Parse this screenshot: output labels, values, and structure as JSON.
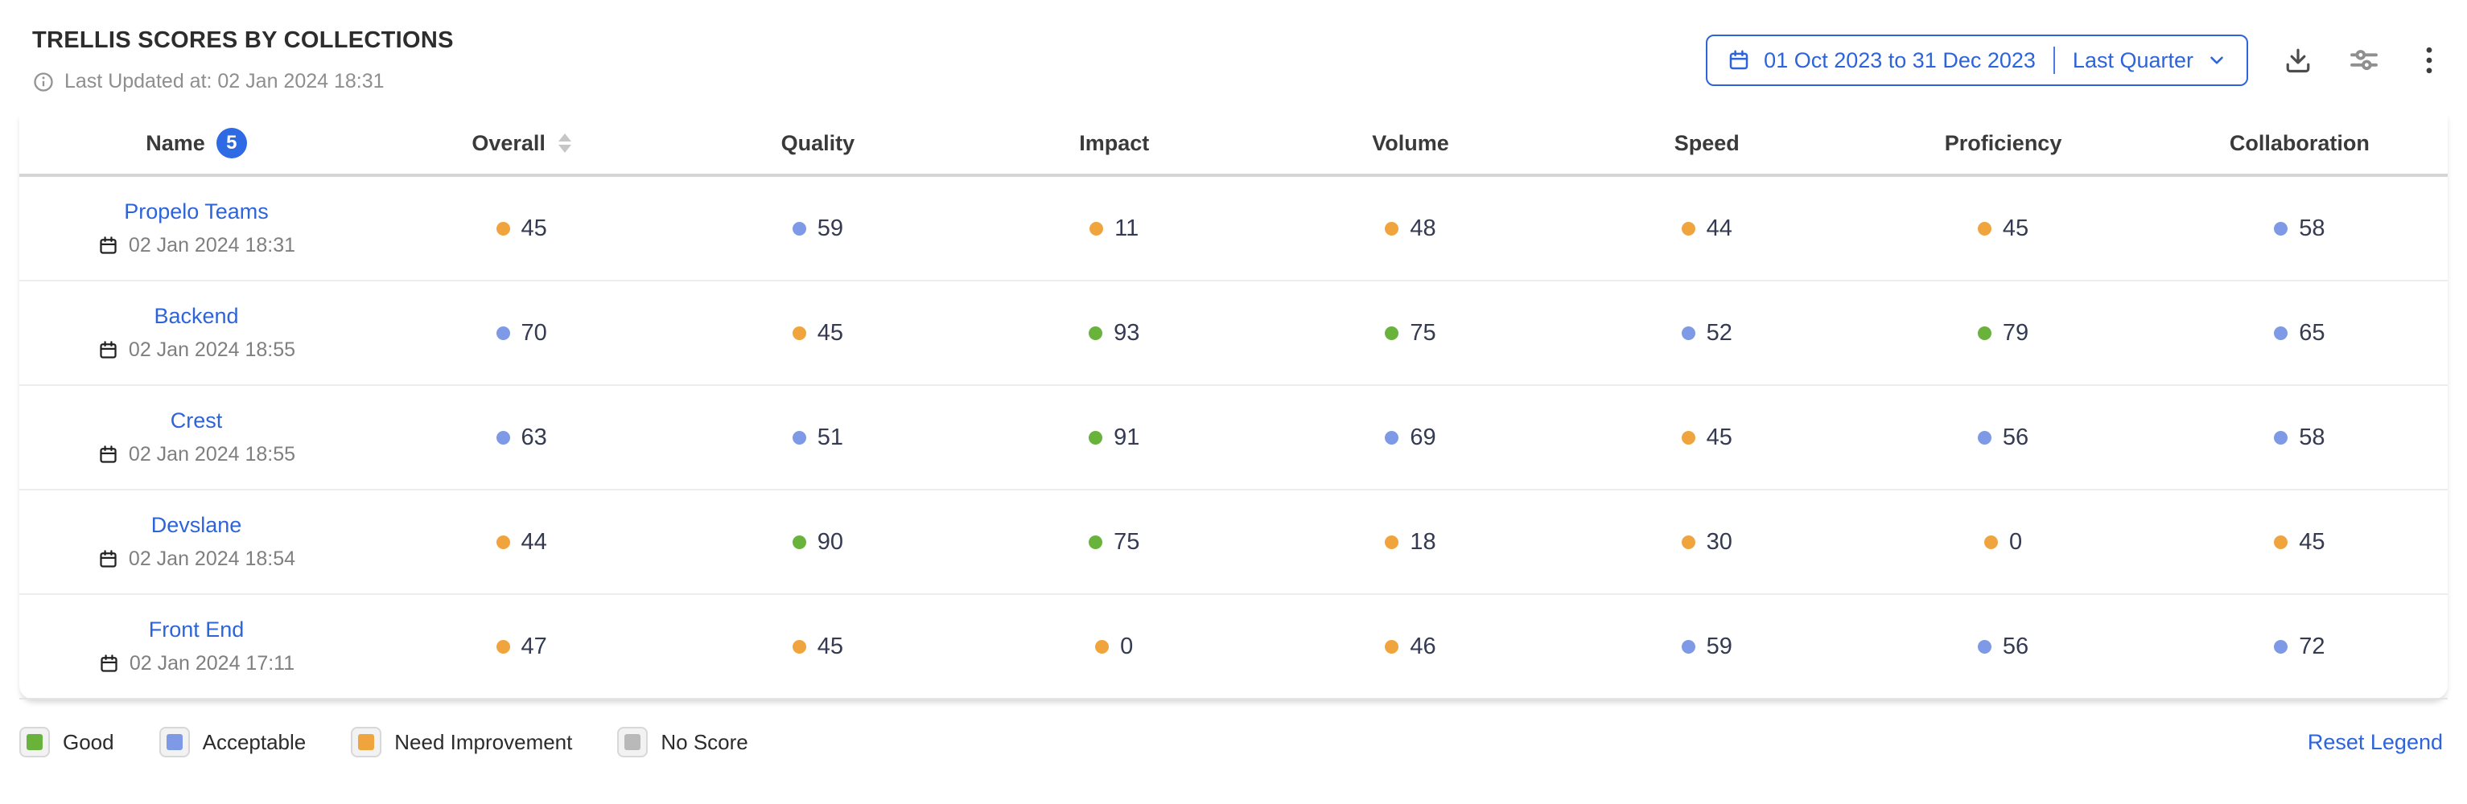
{
  "header": {
    "title": "TRELLIS SCORES BY COLLECTIONS",
    "last_updated": "Last Updated at: 02 Jan 2024 18:31",
    "date_range_label": "01 Oct 2023 to 31 Dec 2023",
    "date_preset_label": "Last Quarter"
  },
  "colors": {
    "accent_blue": "#2d64da",
    "badge_blue": "#2d6ae3",
    "good": "#69b23c",
    "acceptable": "#7e99e6",
    "need_improvement": "#f0a43e",
    "no_score": "#b9b9b9"
  },
  "table": {
    "columns": [
      {
        "label": "Name",
        "badge": "5",
        "sortable": false
      },
      {
        "label": "Overall",
        "sortable": true
      },
      {
        "label": "Quality",
        "sortable": false
      },
      {
        "label": "Impact",
        "sortable": false
      },
      {
        "label": "Volume",
        "sortable": false
      },
      {
        "label": "Speed",
        "sortable": false
      },
      {
        "label": "Proficiency",
        "sortable": false
      },
      {
        "label": "Collaboration",
        "sortable": false
      }
    ],
    "rows": [
      {
        "name": "Propelo Teams",
        "updated": "02 Jan 2024 18:31",
        "scores": [
          {
            "value": 45,
            "rating": "need_improvement"
          },
          {
            "value": 59,
            "rating": "acceptable"
          },
          {
            "value": 11,
            "rating": "need_improvement"
          },
          {
            "value": 48,
            "rating": "need_improvement"
          },
          {
            "value": 44,
            "rating": "need_improvement"
          },
          {
            "value": 45,
            "rating": "need_improvement"
          },
          {
            "value": 58,
            "rating": "acceptable"
          }
        ]
      },
      {
        "name": "Backend",
        "updated": "02 Jan 2024 18:55",
        "scores": [
          {
            "value": 70,
            "rating": "acceptable"
          },
          {
            "value": 45,
            "rating": "need_improvement"
          },
          {
            "value": 93,
            "rating": "good"
          },
          {
            "value": 75,
            "rating": "good"
          },
          {
            "value": 52,
            "rating": "acceptable"
          },
          {
            "value": 79,
            "rating": "good"
          },
          {
            "value": 65,
            "rating": "acceptable"
          }
        ]
      },
      {
        "name": "Crest",
        "updated": "02 Jan 2024 18:55",
        "scores": [
          {
            "value": 63,
            "rating": "acceptable"
          },
          {
            "value": 51,
            "rating": "acceptable"
          },
          {
            "value": 91,
            "rating": "good"
          },
          {
            "value": 69,
            "rating": "acceptable"
          },
          {
            "value": 45,
            "rating": "need_improvement"
          },
          {
            "value": 56,
            "rating": "acceptable"
          },
          {
            "value": 58,
            "rating": "acceptable"
          }
        ]
      },
      {
        "name": "Devslane",
        "updated": "02 Jan 2024 18:54",
        "scores": [
          {
            "value": 44,
            "rating": "need_improvement"
          },
          {
            "value": 90,
            "rating": "good"
          },
          {
            "value": 75,
            "rating": "good"
          },
          {
            "value": 18,
            "rating": "need_improvement"
          },
          {
            "value": 30,
            "rating": "need_improvement"
          },
          {
            "value": 0,
            "rating": "need_improvement"
          },
          {
            "value": 45,
            "rating": "need_improvement"
          }
        ]
      },
      {
        "name": "Front End",
        "updated": "02 Jan 2024 17:11",
        "scores": [
          {
            "value": 47,
            "rating": "need_improvement"
          },
          {
            "value": 45,
            "rating": "need_improvement"
          },
          {
            "value": 0,
            "rating": "need_improvement"
          },
          {
            "value": 46,
            "rating": "need_improvement"
          },
          {
            "value": 59,
            "rating": "acceptable"
          },
          {
            "value": 56,
            "rating": "acceptable"
          },
          {
            "value": 72,
            "rating": "acceptable"
          }
        ]
      }
    ]
  },
  "legend": {
    "items": [
      {
        "label": "Good",
        "rating": "good"
      },
      {
        "label": "Acceptable",
        "rating": "acceptable"
      },
      {
        "label": "Need Improvement",
        "rating": "need_improvement"
      },
      {
        "label": "No Score",
        "rating": "no_score"
      }
    ],
    "reset_label": "Reset Legend"
  },
  "icons": {
    "info": "info-icon",
    "calendar": "calendar-icon",
    "chevron_down": "chevron-down-icon",
    "download": "download-icon",
    "sliders": "sliders-icon",
    "kebab": "kebab-menu-icon"
  }
}
